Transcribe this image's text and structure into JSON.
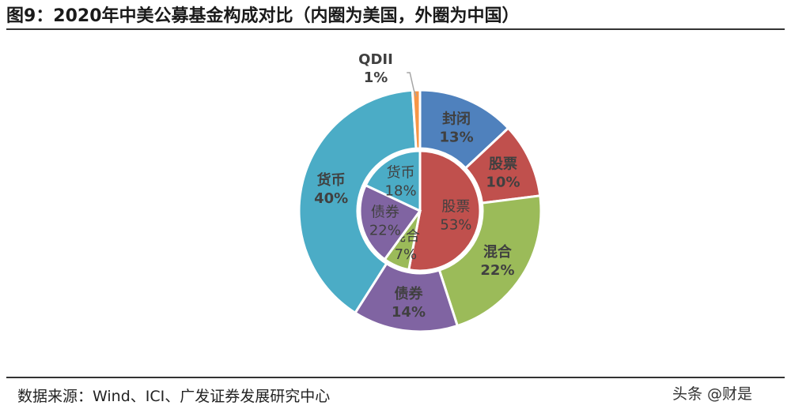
{
  "title": "图9：2020年中美公募基金构成对比（内圈为美国，外圈为中国）",
  "source": "数据来源：Wind、ICI、广发证券发展研究中心",
  "watermark": "头条 @财是",
  "chart_data": {
    "type": "pie",
    "subtype": "nested-donut",
    "series": [
      {
        "ring": "outer",
        "categories": [
          "封闭",
          "股票",
          "混合",
          "债券",
          "货币",
          "QDII"
        ],
        "values": [
          13,
          10,
          22,
          14,
          40,
          1
        ],
        "labels": [
          "13%",
          "10%",
          "22%",
          "14%",
          "40%",
          "1%"
        ],
        "colors": [
          "#4f81bd",
          "#c0504d",
          "#9bbb59",
          "#8064a2",
          "#4bacc6",
          "#f79646"
        ]
      },
      {
        "ring": "inner",
        "categories": [
          "股票",
          "混合",
          "债券",
          "货币"
        ],
        "values": [
          53,
          7,
          22,
          18
        ],
        "labels": [
          "53%",
          "7%",
          "22%",
          "18%"
        ],
        "colors": [
          "#c0504d",
          "#9bbb59",
          "#8064a2",
          "#4bacc6"
        ]
      }
    ]
  }
}
